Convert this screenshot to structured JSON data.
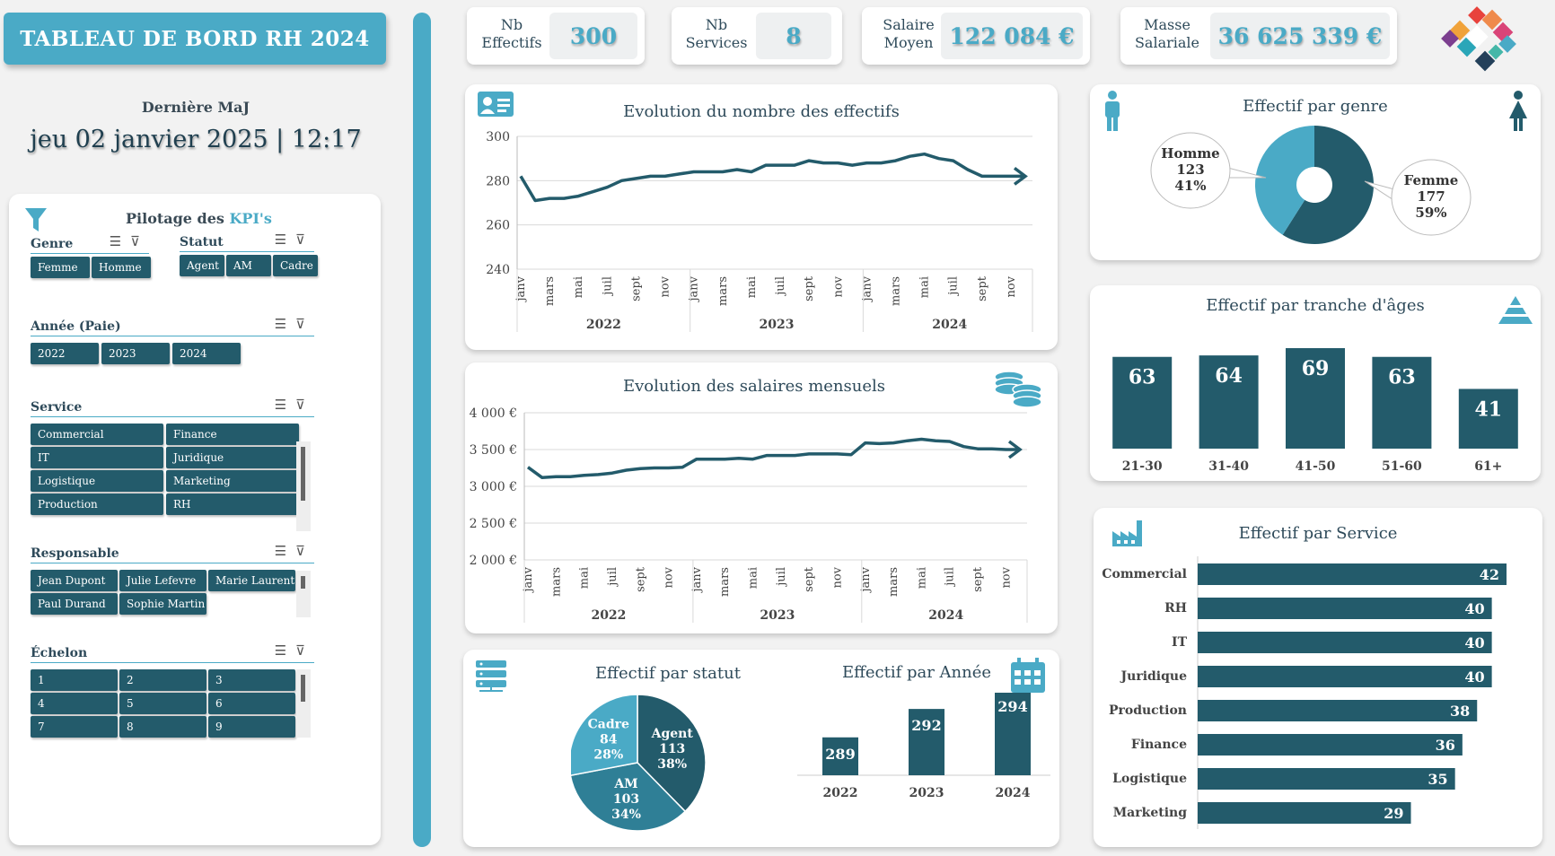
{
  "header": {
    "title": "TABLEAU DE BORD RH 2024",
    "update_label": "Dernière MaJ",
    "update_value": "jeu 02 janvier 2025 | 12:17"
  },
  "kpis": [
    {
      "label_l1": "Nb",
      "label_l2": "Effectifs",
      "value": "300"
    },
    {
      "label_l1": "Nb",
      "label_l2": "Services",
      "value": "8"
    },
    {
      "label_l1": "Salaire",
      "label_l2": "Moyen",
      "value": "122 084 €"
    },
    {
      "label_l1": "Masse",
      "label_l2": "Salariale",
      "value": "36 625 339 €"
    }
  ],
  "panel": {
    "title_part1": "Pilotage des ",
    "title_part2": "KPI's",
    "slicers": {
      "genre": {
        "title": "Genre",
        "items": [
          "Femme",
          "Homme"
        ]
      },
      "statut": {
        "title": "Statut",
        "items": [
          "Agent",
          "AM",
          "Cadre"
        ]
      },
      "annee": {
        "title": "Année (Paie)",
        "items": [
          "2022",
          "2023",
          "2024"
        ]
      },
      "service": {
        "title": "Service",
        "items": [
          "Commercial",
          "Finance",
          "IT",
          "Juridique",
          "Logistique",
          "Marketing",
          "Production",
          "RH"
        ]
      },
      "responsable": {
        "title": "Responsable",
        "items": [
          "Jean Dupont",
          "Julie Lefevre",
          "Marie Laurent",
          "Paul Durand",
          "Sophie Martin"
        ]
      },
      "echelon": {
        "title": "Échelon",
        "items": [
          "1",
          "2",
          "3",
          "4",
          "5",
          "6",
          "7",
          "8",
          "9"
        ]
      }
    }
  },
  "colors": {
    "accent": "#4aaac6",
    "dark": "#235b6b",
    "text": "#2e4a5a"
  },
  "chart_data": [
    {
      "id": "effectifs",
      "type": "line",
      "title": "Evolution du nombre des effectifs",
      "month_ticks": [
        "janv",
        "mars",
        "mai",
        "juil",
        "sept",
        "nov"
      ],
      "years": [
        "2022",
        "2023",
        "2024"
      ],
      "y_ticks": [
        "240",
        "260",
        "280",
        "300"
      ],
      "ylim": [
        240,
        300
      ],
      "values": [
        282,
        271,
        272,
        272,
        273,
        275,
        277,
        280,
        281,
        282,
        282,
        283,
        284,
        284,
        284,
        285,
        284,
        287,
        287,
        287,
        289,
        288,
        288,
        287,
        288,
        288,
        289,
        291,
        292,
        290,
        289,
        285,
        282,
        282,
        282,
        282
      ]
    },
    {
      "id": "salaires",
      "type": "line",
      "title": "Evolution des salaires mensuels",
      "month_ticks": [
        "janv",
        "mars",
        "mai",
        "juil",
        "sept",
        "nov"
      ],
      "years": [
        "2022",
        "2023",
        "2024"
      ],
      "y_ticks": [
        "2 000 €",
        "2 500 €",
        "3 000 €",
        "3 500 €",
        "4 000 €"
      ],
      "ylim": [
        2000,
        4000
      ],
      "values": [
        3260,
        3120,
        3130,
        3130,
        3150,
        3160,
        3180,
        3220,
        3240,
        3250,
        3250,
        3260,
        3370,
        3370,
        3370,
        3380,
        3370,
        3420,
        3420,
        3420,
        3440,
        3440,
        3440,
        3430,
        3590,
        3580,
        3590,
        3620,
        3640,
        3620,
        3610,
        3540,
        3510,
        3510,
        3500,
        3500
      ]
    },
    {
      "id": "genre",
      "type": "pie",
      "title": "Effectif par genre",
      "slices": [
        {
          "label": "Femme",
          "value": 177,
          "pct": "59%"
        },
        {
          "label": "Homme",
          "value": 123,
          "pct": "41%"
        }
      ]
    },
    {
      "id": "ages",
      "type": "bar",
      "title": "Effectif par tranche d'âges",
      "categories": [
        "21-30",
        "31-40",
        "41-50",
        "51-60",
        "61+"
      ],
      "values": [
        63,
        64,
        69,
        63,
        41
      ]
    },
    {
      "id": "statut",
      "type": "pie",
      "title": "Effectif par statut",
      "slices": [
        {
          "label": "Agent",
          "value": 113,
          "pct": "38%"
        },
        {
          "label": "AM",
          "value": 103,
          "pct": "34%"
        },
        {
          "label": "Cadre",
          "value": 84,
          "pct": "28%"
        }
      ]
    },
    {
      "id": "annee",
      "type": "bar",
      "title": "Effectif par Année",
      "categories": [
        "2022",
        "2023",
        "2024"
      ],
      "values": [
        289,
        292,
        294
      ]
    },
    {
      "id": "service",
      "type": "bar",
      "orientation": "horizontal",
      "title": "Effectif par Service",
      "categories": [
        "Commercial",
        "RH",
        "IT",
        "Juridique",
        "Production",
        "Finance",
        "Logistique",
        "Marketing"
      ],
      "values": [
        42,
        40,
        40,
        40,
        38,
        36,
        35,
        29
      ]
    }
  ]
}
